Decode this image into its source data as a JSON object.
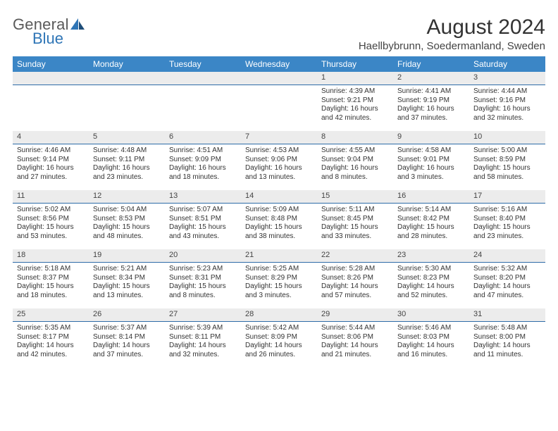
{
  "logo": {
    "general": "General",
    "blue": "Blue",
    "sail_color": "#2e75b6"
  },
  "header": {
    "month_title": "August 2024",
    "location": "Haellbybrunn, Soedermanland, Sweden"
  },
  "weekdays": [
    "Sunday",
    "Monday",
    "Tuesday",
    "Wednesday",
    "Thursday",
    "Friday",
    "Saturday"
  ],
  "colors": {
    "header_bg": "#3b86c6",
    "header_text": "#ffffff",
    "day_header_bg": "#ececec",
    "day_header_border": "#2e6ca8",
    "text": "#333333"
  },
  "weeks": [
    [
      {
        "day": "",
        "lines": []
      },
      {
        "day": "",
        "lines": []
      },
      {
        "day": "",
        "lines": []
      },
      {
        "day": "",
        "lines": []
      },
      {
        "day": "1",
        "lines": [
          "Sunrise: 4:39 AM",
          "Sunset: 9:21 PM",
          "Daylight: 16 hours and 42 minutes."
        ]
      },
      {
        "day": "2",
        "lines": [
          "Sunrise: 4:41 AM",
          "Sunset: 9:19 PM",
          "Daylight: 16 hours and 37 minutes."
        ]
      },
      {
        "day": "3",
        "lines": [
          "Sunrise: 4:44 AM",
          "Sunset: 9:16 PM",
          "Daylight: 16 hours and 32 minutes."
        ]
      }
    ],
    [
      {
        "day": "4",
        "lines": [
          "Sunrise: 4:46 AM",
          "Sunset: 9:14 PM",
          "Daylight: 16 hours and 27 minutes."
        ]
      },
      {
        "day": "5",
        "lines": [
          "Sunrise: 4:48 AM",
          "Sunset: 9:11 PM",
          "Daylight: 16 hours and 23 minutes."
        ]
      },
      {
        "day": "6",
        "lines": [
          "Sunrise: 4:51 AM",
          "Sunset: 9:09 PM",
          "Daylight: 16 hours and 18 minutes."
        ]
      },
      {
        "day": "7",
        "lines": [
          "Sunrise: 4:53 AM",
          "Sunset: 9:06 PM",
          "Daylight: 16 hours and 13 minutes."
        ]
      },
      {
        "day": "8",
        "lines": [
          "Sunrise: 4:55 AM",
          "Sunset: 9:04 PM",
          "Daylight: 16 hours and 8 minutes."
        ]
      },
      {
        "day": "9",
        "lines": [
          "Sunrise: 4:58 AM",
          "Sunset: 9:01 PM",
          "Daylight: 16 hours and 3 minutes."
        ]
      },
      {
        "day": "10",
        "lines": [
          "Sunrise: 5:00 AM",
          "Sunset: 8:59 PM",
          "Daylight: 15 hours and 58 minutes."
        ]
      }
    ],
    [
      {
        "day": "11",
        "lines": [
          "Sunrise: 5:02 AM",
          "Sunset: 8:56 PM",
          "Daylight: 15 hours and 53 minutes."
        ]
      },
      {
        "day": "12",
        "lines": [
          "Sunrise: 5:04 AM",
          "Sunset: 8:53 PM",
          "Daylight: 15 hours and 48 minutes."
        ]
      },
      {
        "day": "13",
        "lines": [
          "Sunrise: 5:07 AM",
          "Sunset: 8:51 PM",
          "Daylight: 15 hours and 43 minutes."
        ]
      },
      {
        "day": "14",
        "lines": [
          "Sunrise: 5:09 AM",
          "Sunset: 8:48 PM",
          "Daylight: 15 hours and 38 minutes."
        ]
      },
      {
        "day": "15",
        "lines": [
          "Sunrise: 5:11 AM",
          "Sunset: 8:45 PM",
          "Daylight: 15 hours and 33 minutes."
        ]
      },
      {
        "day": "16",
        "lines": [
          "Sunrise: 5:14 AM",
          "Sunset: 8:42 PM",
          "Daylight: 15 hours and 28 minutes."
        ]
      },
      {
        "day": "17",
        "lines": [
          "Sunrise: 5:16 AM",
          "Sunset: 8:40 PM",
          "Daylight: 15 hours and 23 minutes."
        ]
      }
    ],
    [
      {
        "day": "18",
        "lines": [
          "Sunrise: 5:18 AM",
          "Sunset: 8:37 PM",
          "Daylight: 15 hours and 18 minutes."
        ]
      },
      {
        "day": "19",
        "lines": [
          "Sunrise: 5:21 AM",
          "Sunset: 8:34 PM",
          "Daylight: 15 hours and 13 minutes."
        ]
      },
      {
        "day": "20",
        "lines": [
          "Sunrise: 5:23 AM",
          "Sunset: 8:31 PM",
          "Daylight: 15 hours and 8 minutes."
        ]
      },
      {
        "day": "21",
        "lines": [
          "Sunrise: 5:25 AM",
          "Sunset: 8:29 PM",
          "Daylight: 15 hours and 3 minutes."
        ]
      },
      {
        "day": "22",
        "lines": [
          "Sunrise: 5:28 AM",
          "Sunset: 8:26 PM",
          "Daylight: 14 hours and 57 minutes."
        ]
      },
      {
        "day": "23",
        "lines": [
          "Sunrise: 5:30 AM",
          "Sunset: 8:23 PM",
          "Daylight: 14 hours and 52 minutes."
        ]
      },
      {
        "day": "24",
        "lines": [
          "Sunrise: 5:32 AM",
          "Sunset: 8:20 PM",
          "Daylight: 14 hours and 47 minutes."
        ]
      }
    ],
    [
      {
        "day": "25",
        "lines": [
          "Sunrise: 5:35 AM",
          "Sunset: 8:17 PM",
          "Daylight: 14 hours and 42 minutes."
        ]
      },
      {
        "day": "26",
        "lines": [
          "Sunrise: 5:37 AM",
          "Sunset: 8:14 PM",
          "Daylight: 14 hours and 37 minutes."
        ]
      },
      {
        "day": "27",
        "lines": [
          "Sunrise: 5:39 AM",
          "Sunset: 8:11 PM",
          "Daylight: 14 hours and 32 minutes."
        ]
      },
      {
        "day": "28",
        "lines": [
          "Sunrise: 5:42 AM",
          "Sunset: 8:09 PM",
          "Daylight: 14 hours and 26 minutes."
        ]
      },
      {
        "day": "29",
        "lines": [
          "Sunrise: 5:44 AM",
          "Sunset: 8:06 PM",
          "Daylight: 14 hours and 21 minutes."
        ]
      },
      {
        "day": "30",
        "lines": [
          "Sunrise: 5:46 AM",
          "Sunset: 8:03 PM",
          "Daylight: 14 hours and 16 minutes."
        ]
      },
      {
        "day": "31",
        "lines": [
          "Sunrise: 5:48 AM",
          "Sunset: 8:00 PM",
          "Daylight: 14 hours and 11 minutes."
        ]
      }
    ]
  ]
}
